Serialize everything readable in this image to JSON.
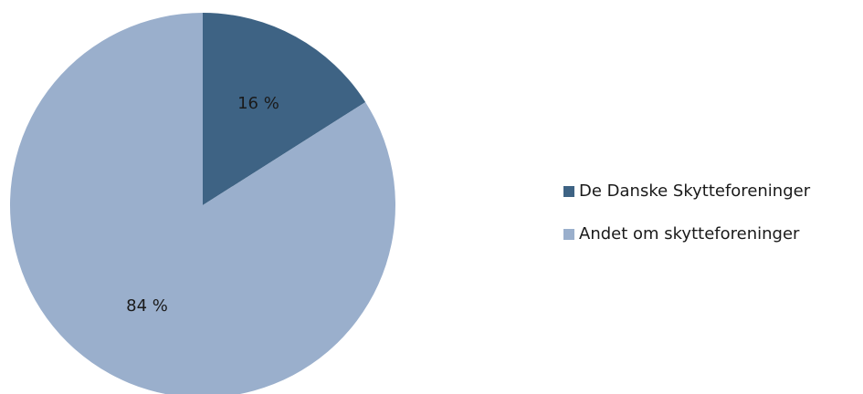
{
  "chart_data": {
    "type": "pie",
    "categories": [
      "De Danske Skytteforeninger",
      "Andet om skytteforeninger"
    ],
    "values": [
      16,
      84
    ],
    "value_labels": [
      "16 %",
      "84 %"
    ],
    "colors": [
      "#3e6384",
      "#9aafcc"
    ],
    "legend": "right"
  }
}
